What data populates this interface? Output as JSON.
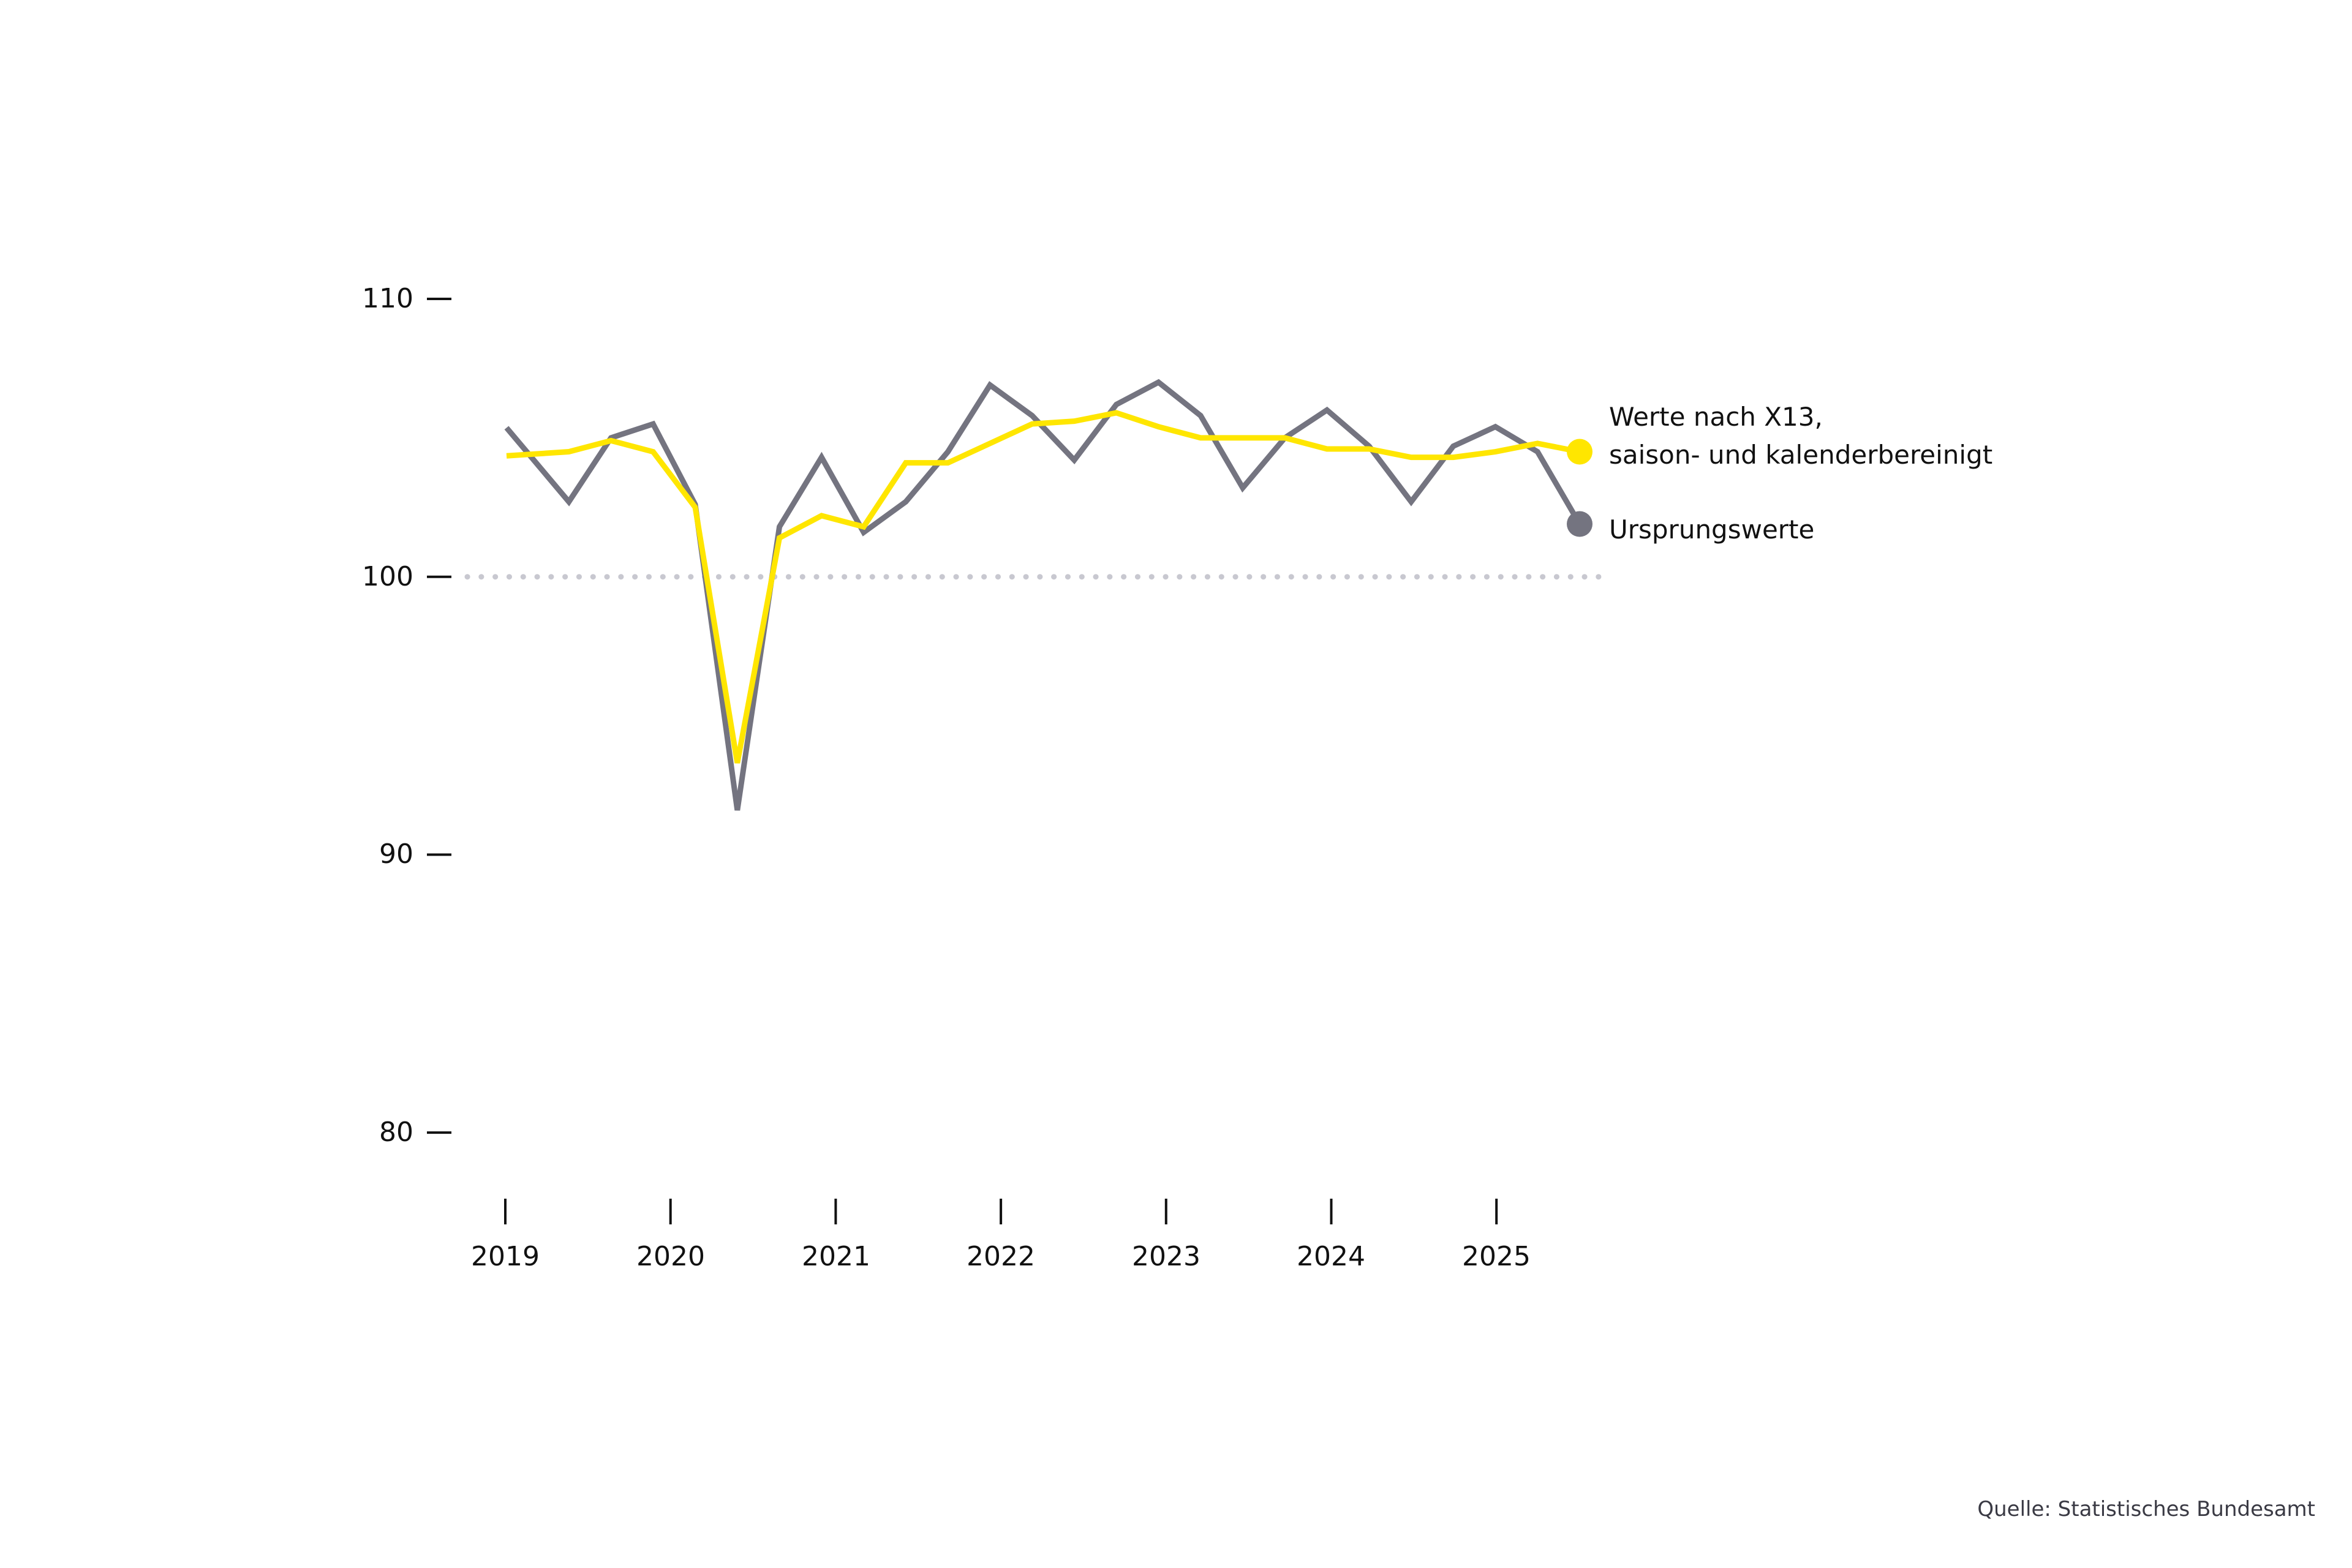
{
  "chart_data": {
    "type": "line",
    "title": "",
    "xlabel": "",
    "ylabel": "",
    "ylim": [
      80,
      110
    ],
    "yticks": [
      110,
      100,
      90,
      80
    ],
    "reference_line": {
      "value": 100,
      "style": "dotted",
      "color": "#c8c8d0"
    },
    "xtick_labels": [
      "2019",
      "2020",
      "2021",
      "2022",
      "2023",
      "2024",
      "2025"
    ],
    "x": [
      "2019Q1",
      "2019Q2",
      "2019Q3",
      "2019Q4",
      "2020Q1",
      "2020Q2",
      "2020Q3",
      "2020Q4",
      "2021Q1",
      "2021Q2",
      "2021Q3",
      "2021Q4",
      "2022Q1",
      "2022Q2",
      "2022Q3",
      "2022Q4",
      "2023Q1",
      "2023Q2",
      "2023Q3",
      "2023Q4",
      "2024Q1",
      "2024Q2",
      "2024Q3",
      "2024Q4",
      "2025Q1",
      "2025Q2"
    ],
    "series": [
      {
        "name": "Werte nach X13, saison- und kalenderbereinigt",
        "color": "#ffe600",
        "values": [
          104.4,
          104.5,
          104.9,
          104.5,
          102.5,
          93.3,
          101.4,
          102.2,
          101.8,
          104.1,
          104.1,
          104.8,
          105.5,
          105.6,
          105.9,
          105.4,
          105.0,
          105.0,
          105.0,
          104.6,
          104.6,
          104.3,
          104.3,
          104.5,
          104.8,
          104.5
        ]
      },
      {
        "name": "Ursprungswerte",
        "color": "#747480",
        "values": [
          104.5,
          102.7,
          105.0,
          105.5,
          102.6,
          91.6,
          101.8,
          104.3,
          101.6,
          102.7,
          104.5,
          106.9,
          105.8,
          104.2,
          106.2,
          107.0,
          105.8,
          103.2,
          105.0,
          106.0,
          104.7,
          102.7,
          104.7,
          105.4,
          104.5,
          101.9
        ]
      }
    ],
    "legend_position": "right, at line ends",
    "grid": false
  },
  "axis": {
    "y_labels": [
      "110",
      "100",
      "90",
      "80"
    ],
    "x_labels": [
      "2019",
      "2020",
      "2021",
      "2022",
      "2023",
      "2024",
      "2025"
    ]
  },
  "legend": {
    "seasonal_line1": "Werte nach X13,",
    "seasonal_line2": "saison- und kalenderbereinigt",
    "original": "Ursprungswerte"
  },
  "source": "Quelle: Statistisches Bundesamt"
}
